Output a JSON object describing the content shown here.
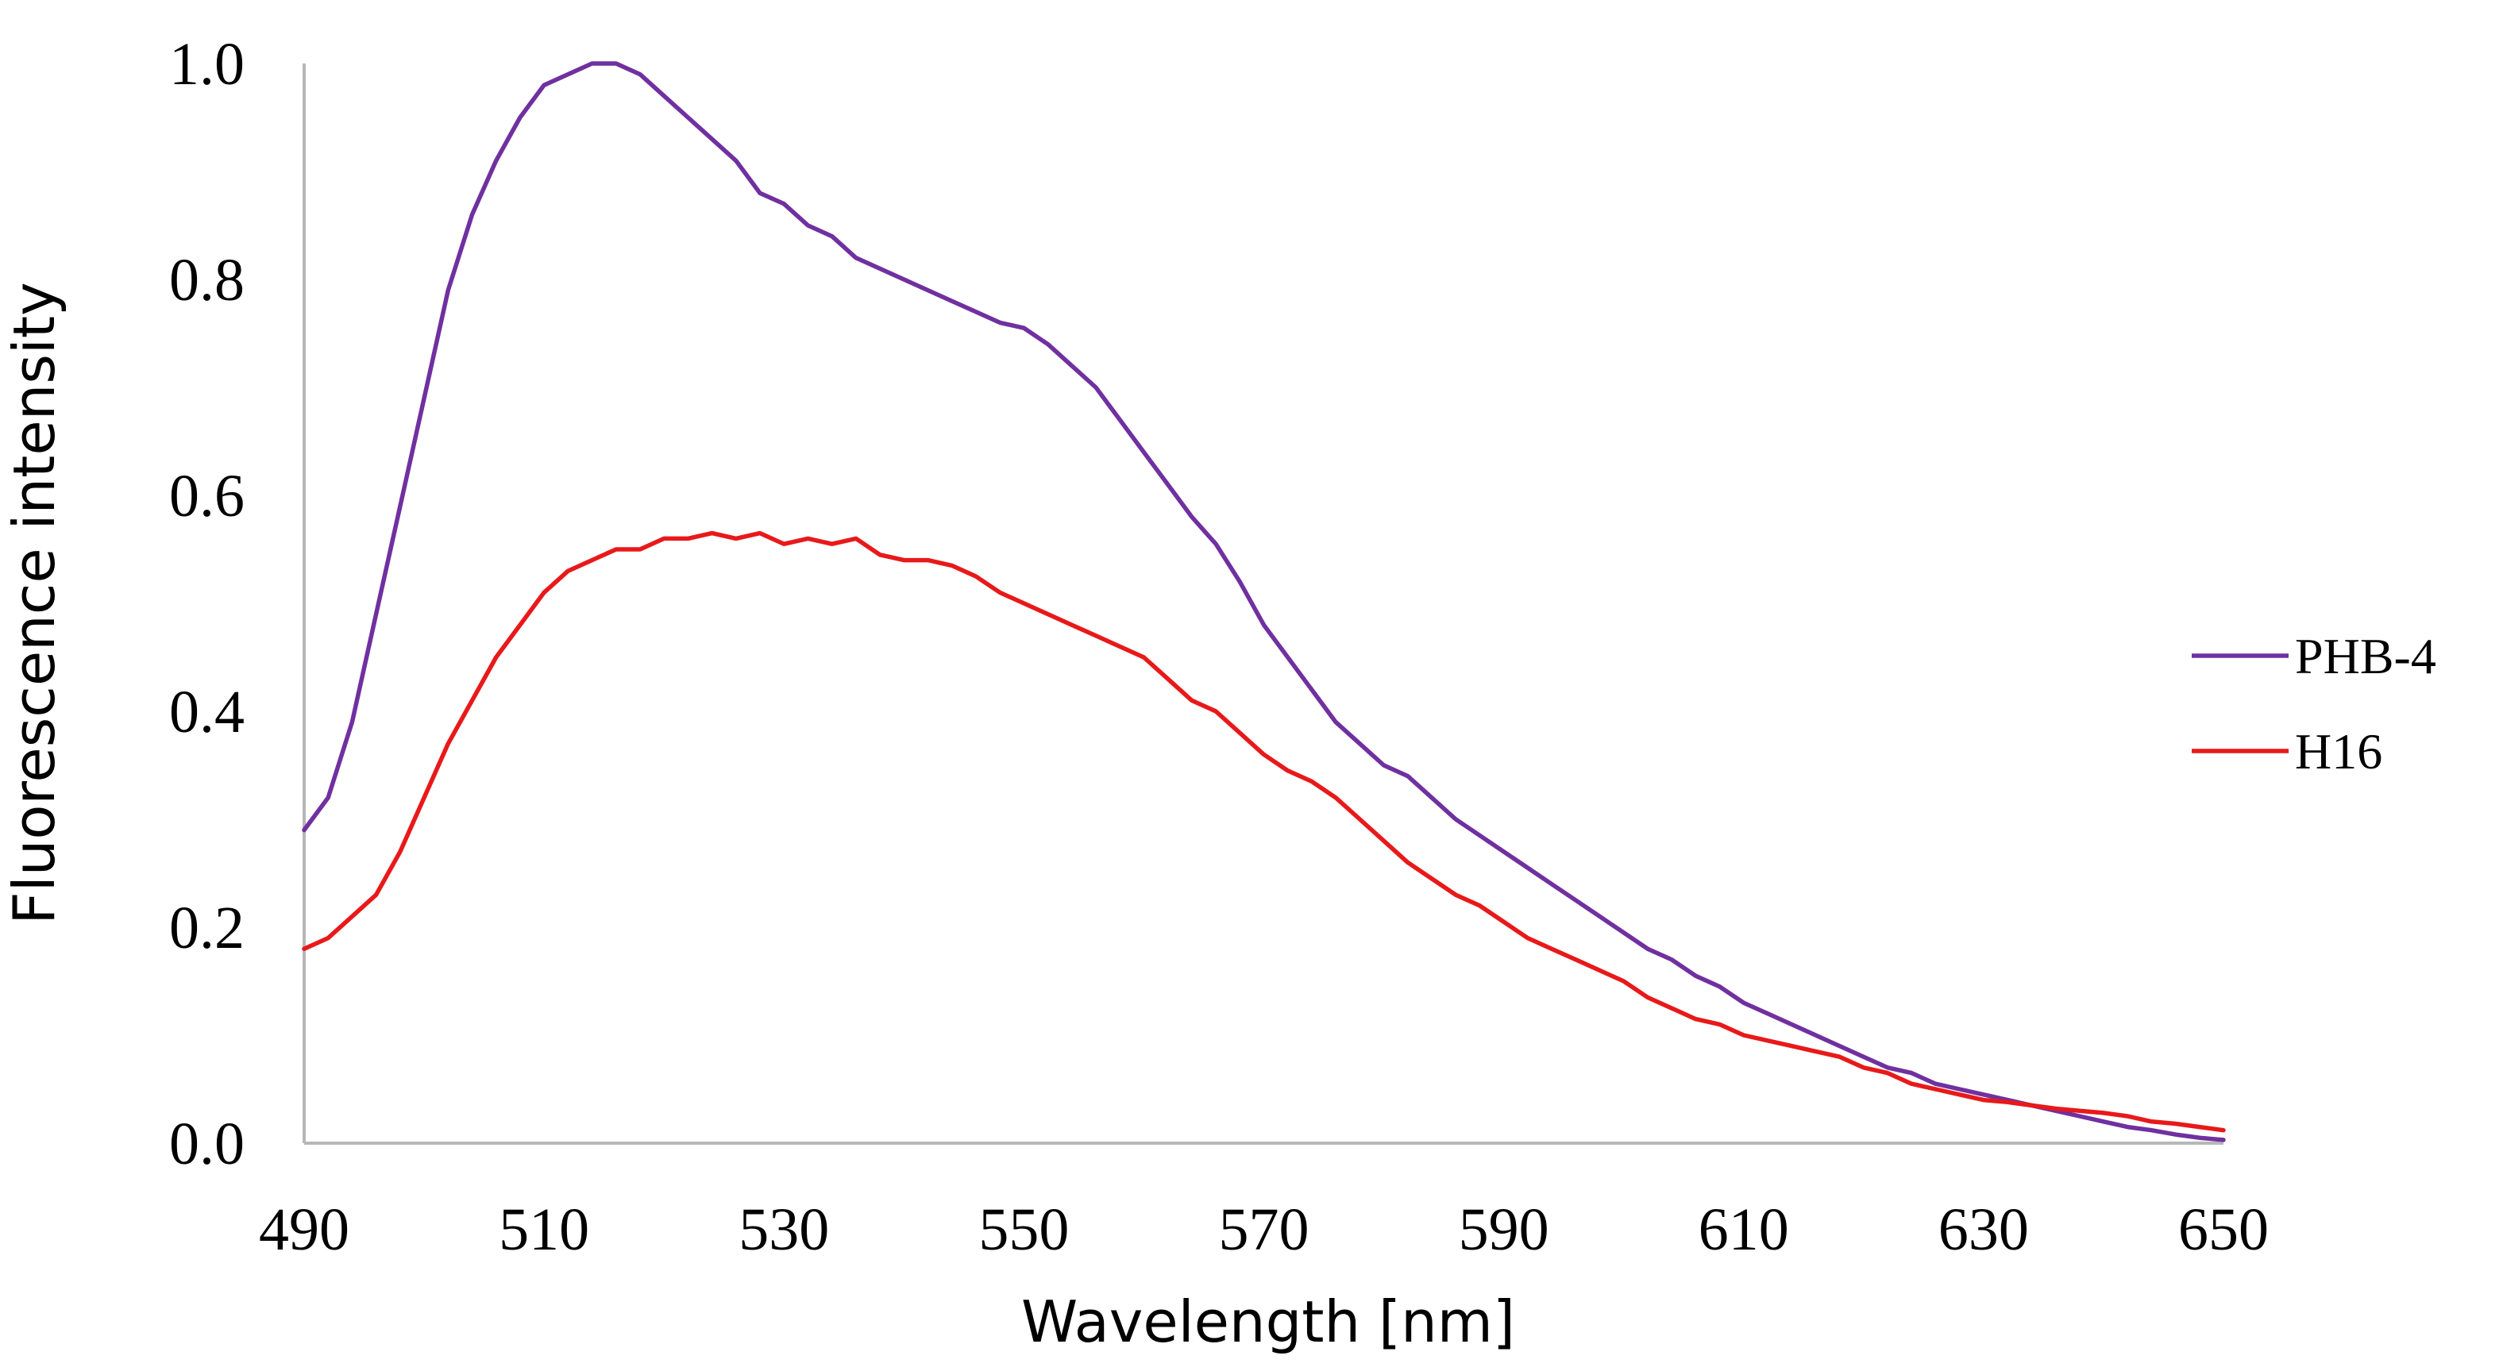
{
  "chart_data": {
    "type": "line",
    "title": "",
    "xlabel": "Wavelength [nm]",
    "ylabel": "Fluorescence intensity",
    "xlim": [
      490,
      650
    ],
    "ylim": [
      0.0,
      1.0
    ],
    "x_ticks": [
      490,
      510,
      530,
      550,
      570,
      590,
      610,
      630,
      650
    ],
    "y_ticks": [
      0.0,
      0.2,
      0.4,
      0.6,
      0.8,
      1.0
    ],
    "x_tick_labels": [
      "490",
      "510",
      "530",
      "550",
      "570",
      "590",
      "610",
      "630",
      "650"
    ],
    "y_tick_labels": [
      "0.0",
      "0.2",
      "0.4",
      "0.6",
      "0.8",
      "1.0"
    ],
    "grid": false,
    "legend_position": "right",
    "series": [
      {
        "name": "PHB-4",
        "color": "#7030A0",
        "x": [
          490,
          492,
          494,
          496,
          498,
          500,
          502,
          504,
          506,
          508,
          510,
          512,
          514,
          516,
          518,
          520,
          522,
          524,
          526,
          528,
          530,
          532,
          534,
          536,
          538,
          540,
          542,
          544,
          546,
          548,
          550,
          552,
          554,
          556,
          558,
          560,
          562,
          564,
          566,
          568,
          570,
          572,
          574,
          576,
          578,
          580,
          582,
          584,
          586,
          588,
          590,
          592,
          594,
          596,
          598,
          600,
          602,
          604,
          606,
          608,
          610,
          612,
          614,
          616,
          618,
          620,
          622,
          624,
          626,
          628,
          630,
          632,
          634,
          636,
          638,
          640,
          642,
          644,
          646,
          648,
          650
        ],
        "values": [
          0.29,
          0.32,
          0.39,
          0.49,
          0.59,
          0.69,
          0.79,
          0.86,
          0.91,
          0.95,
          0.98,
          0.99,
          1.0,
          1.0,
          0.99,
          0.97,
          0.95,
          0.93,
          0.91,
          0.88,
          0.87,
          0.85,
          0.84,
          0.82,
          0.81,
          0.8,
          0.79,
          0.78,
          0.77,
          0.76,
          0.755,
          0.74,
          0.72,
          0.7,
          0.67,
          0.64,
          0.61,
          0.58,
          0.555,
          0.52,
          0.48,
          0.45,
          0.42,
          0.39,
          0.37,
          0.35,
          0.34,
          0.32,
          0.3,
          0.285,
          0.27,
          0.255,
          0.24,
          0.225,
          0.21,
          0.195,
          0.18,
          0.17,
          0.155,
          0.145,
          0.13,
          0.12,
          0.11,
          0.1,
          0.09,
          0.08,
          0.07,
          0.065,
          0.055,
          0.05,
          0.045,
          0.04,
          0.035,
          0.03,
          0.025,
          0.02,
          0.015,
          0.012,
          0.008,
          0.005,
          0.003
        ]
      },
      {
        "name": "H16",
        "color": "#E8191A",
        "x": [
          490,
          492,
          494,
          496,
          498,
          500,
          502,
          504,
          506,
          508,
          510,
          512,
          514,
          516,
          518,
          520,
          522,
          524,
          526,
          528,
          530,
          532,
          534,
          536,
          538,
          540,
          542,
          544,
          546,
          548,
          550,
          552,
          554,
          556,
          558,
          560,
          562,
          564,
          566,
          568,
          570,
          572,
          574,
          576,
          578,
          580,
          582,
          584,
          586,
          588,
          590,
          592,
          594,
          596,
          598,
          600,
          602,
          604,
          606,
          608,
          610,
          612,
          614,
          616,
          618,
          620,
          622,
          624,
          626,
          628,
          630,
          632,
          634,
          636,
          638,
          640,
          642,
          644,
          646,
          648,
          650
        ],
        "values": [
          0.18,
          0.19,
          0.21,
          0.23,
          0.27,
          0.32,
          0.37,
          0.41,
          0.45,
          0.48,
          0.51,
          0.53,
          0.54,
          0.55,
          0.55,
          0.56,
          0.56,
          0.565,
          0.56,
          0.565,
          0.555,
          0.56,
          0.555,
          0.56,
          0.545,
          0.54,
          0.54,
          0.535,
          0.525,
          0.51,
          0.5,
          0.49,
          0.48,
          0.47,
          0.46,
          0.45,
          0.43,
          0.41,
          0.4,
          0.38,
          0.36,
          0.345,
          0.335,
          0.32,
          0.3,
          0.28,
          0.26,
          0.245,
          0.23,
          0.22,
          0.205,
          0.19,
          0.18,
          0.17,
          0.16,
          0.15,
          0.135,
          0.125,
          0.115,
          0.11,
          0.1,
          0.095,
          0.09,
          0.085,
          0.08,
          0.07,
          0.065,
          0.055,
          0.05,
          0.045,
          0.04,
          0.038,
          0.035,
          0.032,
          0.03,
          0.028,
          0.025,
          0.02,
          0.018,
          0.015,
          0.012
        ]
      }
    ]
  }
}
